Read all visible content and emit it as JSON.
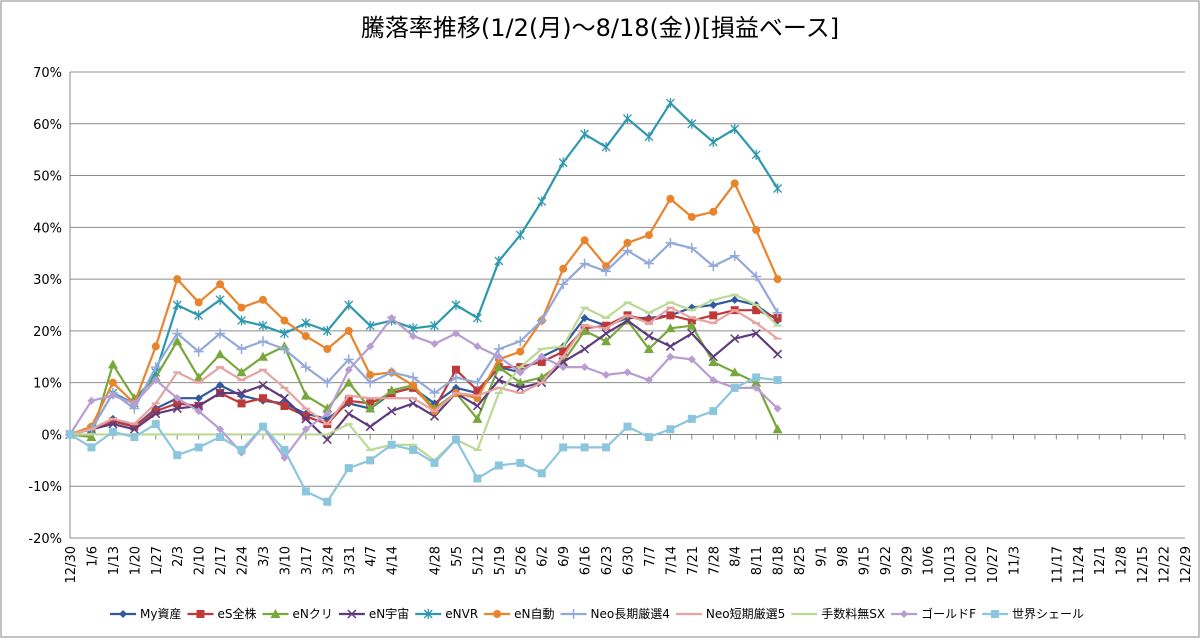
{
  "chart_data": {
    "type": "line",
    "title": "騰落率推移(1/2(月)～8/18(金))[損益ベース]",
    "categories": [
      "12/30",
      "1/6",
      "1/13",
      "1/20",
      "1/27",
      "2/3",
      "2/10",
      "2/17",
      "2/24",
      "3/3",
      "3/10",
      "3/17",
      "3/24",
      "3/31",
      "4/7",
      "4/14",
      null,
      "4/28",
      "5/5",
      "5/12",
      "5/19",
      "5/26",
      "6/2",
      "6/9",
      "6/16",
      "6/23",
      "6/30",
      "7/7",
      "7/14",
      "7/21",
      "7/28",
      "8/4",
      "8/11",
      "8/18",
      "8/25",
      "9/1",
      "9/8",
      "9/15",
      "9/22",
      "9/29",
      "10/6",
      "10/13",
      "10/20",
      "10/27",
      "11/3",
      null,
      "11/17",
      "11/24",
      "12/1",
      "12/8",
      "12/15",
      "12/22",
      "12/29"
    ],
    "ylim": [
      -20,
      70
    ],
    "yticks": [
      {
        "value": -20,
        "label": "-20%"
      },
      {
        "value": -10,
        "label": "-10%"
      },
      {
        "value": 0,
        "label": "0%"
      },
      {
        "value": 10,
        "label": "10%"
      },
      {
        "value": 20,
        "label": "20%"
      },
      {
        "value": 30,
        "label": "30%"
      },
      {
        "value": 40,
        "label": "40%"
      },
      {
        "value": 50,
        "label": "50%"
      },
      {
        "value": 60,
        "label": "60%"
      },
      {
        "value": 70,
        "label": "70%"
      }
    ],
    "grid": true,
    "legend": "bottom",
    "series": [
      {
        "name": "My資産",
        "color": "#2f5a9e",
        "marker": "diamond",
        "values": [
          0,
          1,
          3,
          1.5,
          5,
          7,
          7,
          9.5,
          7.5,
          6.5,
          6,
          4,
          3,
          6,
          5,
          8,
          9,
          6,
          9,
          8,
          13,
          12,
          15,
          17,
          22.5,
          21,
          22.5,
          22.5,
          23,
          24.5,
          25,
          26,
          25,
          22,
          null,
          null,
          null,
          null,
          null,
          null,
          null,
          null,
          null,
          null,
          null,
          null,
          null,
          null,
          null,
          null,
          null,
          null,
          null
        ]
      },
      {
        "name": "eS全株",
        "color": "#be3a3a",
        "marker": "square",
        "values": [
          0,
          1,
          2.5,
          1.5,
          4.5,
          6,
          5.5,
          8,
          6,
          7,
          5.5,
          3.5,
          2,
          6.5,
          6,
          8,
          9,
          5,
          12.5,
          8.5,
          13,
          13,
          14,
          16,
          20.5,
          21,
          23,
          22,
          23,
          22,
          23,
          24,
          24,
          22.5,
          null,
          null,
          null,
          null,
          null,
          null,
          null,
          null,
          null,
          null,
          null,
          null,
          null,
          null,
          null,
          null,
          null,
          null,
          null
        ]
      },
      {
        "name": "eNクリ",
        "color": "#78a83c",
        "marker": "triangle",
        "values": [
          0,
          -0.5,
          13.5,
          7,
          11,
          18,
          11,
          15.5,
          12,
          15,
          17,
          7.5,
          5,
          10,
          5,
          8.5,
          9.5,
          5,
          8,
          3,
          13,
          10,
          11,
          14,
          20,
          18,
          22,
          16.5,
          20.5,
          21,
          14,
          12,
          10,
          1,
          null,
          null,
          null,
          null,
          null,
          null,
          null,
          null,
          null,
          null,
          null,
          null,
          null,
          null,
          null,
          null,
          null,
          null,
          null
        ]
      },
      {
        "name": "eN宇宙",
        "color": "#5e3b7e",
        "marker": "x",
        "values": [
          0,
          1,
          2,
          1,
          4,
          5,
          5.5,
          8,
          8,
          9.5,
          7,
          3,
          -1,
          4,
          1.5,
          4.5,
          6,
          3.5,
          8,
          5.5,
          10.5,
          9,
          10,
          14,
          16.5,
          19.5,
          22,
          19,
          17,
          19.5,
          15,
          18.5,
          19.5,
          15.5,
          null,
          null,
          null,
          null,
          null,
          null,
          null,
          null,
          null,
          null,
          null,
          null,
          null,
          null,
          null,
          null,
          null,
          null,
          null
        ]
      },
      {
        "name": "eNVR",
        "color": "#2e98ae",
        "marker": "star",
        "values": [
          0,
          1,
          8,
          6,
          12,
          25,
          23,
          26,
          22,
          21,
          19.5,
          21.5,
          20,
          25,
          21,
          22,
          20.5,
          21,
          25,
          22.5,
          33.5,
          38.5,
          45,
          52.5,
          58,
          55.5,
          61,
          57.5,
          64,
          60,
          56.5,
          59,
          54,
          47.5,
          null,
          null,
          null,
          null,
          null,
          null,
          null,
          null,
          null,
          null,
          null,
          null,
          null,
          null,
          null,
          null,
          null,
          null,
          null
        ]
      },
      {
        "name": "eN自動",
        "color": "#e8842c",
        "marker": "circle",
        "values": [
          0,
          1.5,
          10,
          6,
          17,
          30,
          25.5,
          29,
          24.5,
          26,
          22,
          19,
          16.5,
          20,
          11.5,
          12,
          9.5,
          4.5,
          8,
          7,
          14.5,
          16,
          22,
          32,
          37.5,
          32.5,
          37,
          38.5,
          45.5,
          42,
          43,
          48.5,
          39.5,
          30,
          null,
          null,
          null,
          null,
          null,
          null,
          null,
          null,
          null,
          null,
          null,
          null,
          null,
          null,
          null,
          null,
          null,
          null,
          null
        ]
      },
      {
        "name": "Neo長期厳選4",
        "color": "#92a9da",
        "marker": "plus",
        "values": [
          0,
          1,
          8,
          5,
          13,
          19.5,
          16,
          19.5,
          16.5,
          18,
          16.5,
          13,
          10,
          14.5,
          10,
          12,
          11,
          8,
          11,
          10,
          16.5,
          18,
          22,
          29,
          33,
          31.5,
          35.5,
          33,
          37,
          36,
          32.5,
          34.5,
          30.5,
          23.5,
          null,
          null,
          null,
          null,
          null,
          null,
          null,
          null,
          null,
          null,
          null,
          null,
          null,
          null,
          null,
          null,
          null,
          null,
          null
        ]
      },
      {
        "name": "Neo短期厳選5",
        "color": "#e6a3a3",
        "marker": "dash",
        "values": [
          0,
          1,
          3,
          2,
          6,
          12,
          10,
          13,
          10.5,
          12.5,
          9,
          5,
          2,
          7.5,
          7,
          7,
          7,
          4.5,
          8,
          7.5,
          9,
          8,
          10,
          15,
          21,
          20.5,
          23,
          21.5,
          24.5,
          22.5,
          21.5,
          24,
          21.5,
          18.5,
          null,
          null,
          null,
          null,
          null,
          null,
          null,
          null,
          null,
          null,
          null,
          null,
          null,
          null,
          null,
          null,
          null,
          null,
          null
        ]
      },
      {
        "name": "手数料無SX",
        "color": "#bcd995",
        "marker": "dash",
        "values": [
          0,
          0,
          0,
          0,
          0,
          0,
          0,
          0,
          0,
          0,
          0,
          0,
          0,
          2,
          -3,
          -2,
          -2,
          -5,
          -1,
          -3,
          8,
          13,
          16.5,
          17,
          24.5,
          22.5,
          25.5,
          23.5,
          25.5,
          24,
          26,
          27,
          25,
          21,
          null,
          null,
          null,
          null,
          null,
          null,
          null,
          null,
          null,
          null,
          null,
          null,
          null,
          null,
          null,
          null,
          null,
          null,
          null
        ]
      },
      {
        "name": "ゴールドF",
        "color": "#b79dd2",
        "marker": "diamond",
        "values": [
          0,
          6.5,
          7.5,
          6,
          10.5,
          7,
          4.5,
          1,
          -3.5,
          1.5,
          -4.5,
          1,
          4,
          12.5,
          17,
          22.5,
          19,
          17.5,
          19.5,
          17,
          15,
          12,
          15,
          13,
          13,
          11.5,
          12,
          10.5,
          15,
          14.5,
          10.5,
          9,
          9,
          5,
          null,
          null,
          null,
          null,
          null,
          null,
          null,
          null,
          null,
          null,
          null,
          null,
          null,
          null,
          null,
          null,
          null,
          null,
          null
        ]
      },
      {
        "name": "世界シェール",
        "color": "#8cc6dd",
        "marker": "square",
        "values": [
          0,
          -2.5,
          0.5,
          -0.5,
          2,
          -4,
          -2.5,
          -0.5,
          -3,
          1.5,
          -3,
          -11,
          -13,
          -6.5,
          -5,
          -2,
          -3,
          -5.5,
          -1,
          -8.5,
          -6,
          -5.5,
          -7.5,
          -2.5,
          -2.5,
          -2.5,
          1.5,
          -0.5,
          1,
          3,
          4.5,
          9,
          11,
          10.5,
          null,
          null,
          null,
          null,
          null,
          null,
          null,
          null,
          null,
          null,
          null,
          null,
          null,
          null,
          null,
          null,
          null,
          null,
          null
        ]
      }
    ]
  }
}
